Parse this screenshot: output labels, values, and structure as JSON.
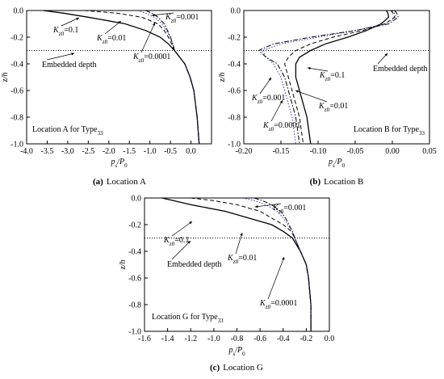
{
  "chart_data": [
    {
      "type": "line",
      "ylabel": "z/h",
      "xlabel": [
        "p",
        "s",
        "/P",
        "0"
      ],
      "xlim": [
        -4,
        0.5
      ],
      "ylim": [
        -1,
        0
      ],
      "xticks": [
        {
          "value": -4,
          "label": "-4.0"
        },
        {
          "value": -3.5,
          "label": "-3.5"
        },
        {
          "value": -3,
          "label": "-3.0"
        },
        {
          "value": -2.5,
          "label": "-2.5"
        },
        {
          "value": -2,
          "label": "-2.0"
        },
        {
          "value": -1.5,
          "label": "-1.5"
        },
        {
          "value": -1,
          "label": "-1.0"
        },
        {
          "value": -0.5,
          "label": "-0.5"
        },
        {
          "value": 0,
          "label": "0.0"
        }
      ],
      "yticks": [
        {
          "value": 0,
          "label": "0.0"
        },
        -0.2,
        -0.4,
        -0.6,
        -0.8,
        {
          "value": -1,
          "label": "-1.0"
        }
      ],
      "embedded_depth": -0.3,
      "depth_label": "Embedded depth",
      "location": [
        "Location A for Type",
        "33"
      ],
      "caption": [
        "(a)",
        "Location A"
      ],
      "series": [
        {
          "name": [
            "K",
            "z0",
            "=0.1"
          ],
          "color": "#000000",
          "style": "solid",
          "x": [
            -3.6,
            -3.1,
            -2.5,
            -1.6,
            -1.1,
            -0.75,
            -0.55,
            -0.4,
            -0.15,
            -0.02,
            0.07,
            0.15,
            0.2
          ],
          "values": [
            0,
            -0.02,
            -0.05,
            -0.1,
            -0.15,
            -0.2,
            -0.25,
            -0.3,
            -0.4,
            -0.5,
            -0.6,
            -0.8,
            -1
          ]
        },
        {
          "name": [
            "K",
            "z0",
            "=0.01"
          ],
          "color": "#000000",
          "style": "dashed",
          "x": [
            -2.6,
            -1.8,
            -1.2,
            -0.8,
            -0.65,
            -0.55,
            -0.47,
            -0.4,
            -0.15,
            -0.02,
            0.07,
            0.15,
            0.2
          ],
          "values": [
            0,
            -0.02,
            -0.05,
            -0.1,
            -0.15,
            -0.2,
            -0.25,
            -0.3,
            -0.4,
            -0.5,
            -0.6,
            -0.8,
            -1
          ]
        },
        {
          "name": [
            "K",
            "z0",
            "=0.001"
          ],
          "color": "#3333cc",
          "style": "dotted",
          "x": [
            -1.3,
            -1.1,
            -0.9,
            -0.7,
            -0.6,
            -0.5,
            -0.45,
            -0.4,
            -0.15,
            -0.02,
            0.07,
            0.15,
            0.2
          ],
          "values": [
            0,
            -0.02,
            -0.05,
            -0.1,
            -0.15,
            -0.2,
            -0.25,
            -0.3,
            -0.4,
            -0.5,
            -0.6,
            -0.8,
            -1
          ]
        },
        {
          "name": [
            "K",
            "z0",
            "=0.0001"
          ],
          "color": "#000000",
          "style": "dashdot",
          "x": [
            -1.1,
            -0.95,
            -0.8,
            -0.65,
            -0.57,
            -0.5,
            -0.44,
            -0.4,
            -0.15,
            -0.02,
            0.07,
            0.15,
            0.2
          ],
          "values": [
            0,
            -0.02,
            -0.05,
            -0.1,
            -0.15,
            -0.2,
            -0.25,
            -0.3,
            -0.4,
            -0.5,
            -0.6,
            -0.8,
            -1
          ]
        }
      ]
    },
    {
      "type": "line",
      "ylabel": "z/h",
      "xlabel": [
        "p",
        "s",
        "/P",
        "0"
      ],
      "xlim": [
        -0.2,
        0.05
      ],
      "ylim": [
        -1,
        0
      ],
      "xticks": [
        {
          "value": -0.2,
          "label": "-0.20"
        },
        -0.15,
        {
          "value": -0.1,
          "label": "-0.10"
        },
        -0.05,
        {
          "value": 0,
          "label": "0.00"
        },
        0.05
      ],
      "yticks": [
        {
          "value": 0,
          "label": "0.0"
        },
        -0.2,
        -0.4,
        -0.6,
        -0.8,
        {
          "value": -1,
          "label": "-1.0"
        }
      ],
      "embedded_depth": -0.3,
      "depth_label": "Embedded depth",
      "location": [
        "Location B for Type",
        "33"
      ],
      "caption": [
        "(b)",
        "Location B"
      ],
      "series": [
        {
          "name": [
            "K",
            "z0",
            "=0.1"
          ],
          "color": "#000000",
          "style": "solid",
          "x": [
            -0.008,
            -0.006,
            -0.005,
            -0.015,
            -0.035,
            -0.06,
            -0.09,
            -0.11,
            -0.125,
            -0.13,
            -0.13,
            -0.125,
            -0.115,
            -0.11
          ],
          "values": [
            0,
            -0.02,
            -0.05,
            -0.1,
            -0.15,
            -0.2,
            -0.25,
            -0.3,
            -0.35,
            -0.4,
            -0.5,
            -0.6,
            -0.8,
            -1
          ]
        },
        {
          "name": [
            "K",
            "z0",
            "=0.01"
          ],
          "color": "#000000",
          "style": "dashed",
          "x": [
            -0.002,
            0.001,
            0.003,
            -0.01,
            -0.04,
            -0.08,
            -0.11,
            -0.13,
            -0.14,
            -0.145,
            -0.14,
            -0.135,
            -0.125,
            -0.12
          ],
          "values": [
            0,
            -0.02,
            -0.05,
            -0.1,
            -0.15,
            -0.2,
            -0.25,
            -0.3,
            -0.35,
            -0.4,
            -0.5,
            -0.6,
            -0.8,
            -1
          ]
        },
        {
          "name": [
            "K",
            "z0",
            "=0.001"
          ],
          "color": "#3333cc",
          "style": "dotted",
          "x": [
            0,
            0.003,
            0.005,
            -0.01,
            -0.05,
            -0.1,
            -0.15,
            -0.175,
            -0.17,
            -0.16,
            -0.15,
            -0.145,
            -0.135,
            -0.13
          ],
          "values": [
            0,
            -0.02,
            -0.05,
            -0.1,
            -0.15,
            -0.2,
            -0.25,
            -0.3,
            -0.35,
            -0.4,
            -0.5,
            -0.6,
            -0.8,
            -1
          ]
        },
        {
          "name": [
            "K",
            "z0",
            "=0.0001"
          ],
          "color": "#000000",
          "style": "dashdot",
          "x": [
            0.003,
            0.006,
            0.008,
            -0.005,
            -0.05,
            -0.11,
            -0.16,
            -0.18,
            -0.17,
            -0.155,
            -0.145,
            -0.14,
            -0.13,
            -0.125
          ],
          "values": [
            0,
            -0.02,
            -0.05,
            -0.1,
            -0.15,
            -0.2,
            -0.25,
            -0.3,
            -0.35,
            -0.4,
            -0.5,
            -0.6,
            -0.8,
            -1
          ]
        }
      ]
    },
    {
      "type": "line",
      "ylabel": "z/h",
      "xlabel": [
        "p",
        "s",
        "/P",
        "0"
      ],
      "xlim": [
        -1.6,
        0
      ],
      "ylim": [
        -1,
        0
      ],
      "xticks": [
        -1.6,
        -1.4,
        -1.2,
        {
          "value": -1,
          "label": "-1.0"
        },
        -0.8,
        -0.6,
        -0.4,
        -0.2,
        {
          "value": 0,
          "label": "0.0"
        }
      ],
      "yticks": [
        {
          "value": 0,
          "label": "0.0"
        },
        -0.2,
        -0.4,
        -0.6,
        -0.8,
        {
          "value": -1,
          "label": "-1.0"
        }
      ],
      "embedded_depth": -0.3,
      "depth_label": "Embedded depth",
      "location": [
        "Location G for Type",
        "33"
      ],
      "caption": [
        "(c)",
        "Location G"
      ],
      "series": [
        {
          "name": [
            "K",
            "z0",
            "=0.1"
          ],
          "color": "#000000",
          "style": "solid",
          "x": [
            -1.45,
            -1.35,
            -1.2,
            -0.9,
            -0.7,
            -0.5,
            -0.4,
            -0.32,
            -0.25,
            -0.2,
            -0.18,
            -0.16,
            -0.16
          ],
          "values": [
            0,
            -0.02,
            -0.05,
            -0.1,
            -0.15,
            -0.2,
            -0.25,
            -0.3,
            -0.4,
            -0.5,
            -0.6,
            -0.8,
            -1
          ]
        },
        {
          "name": [
            "K",
            "z0",
            "=0.01"
          ],
          "color": "#000000",
          "style": "dashed",
          "x": [
            -1.2,
            -1,
            -0.8,
            -0.6,
            -0.5,
            -0.4,
            -0.33,
            -0.3,
            -0.25,
            -0.2,
            -0.18,
            -0.16,
            -0.16
          ],
          "values": [
            0,
            -0.02,
            -0.05,
            -0.1,
            -0.15,
            -0.2,
            -0.25,
            -0.3,
            -0.4,
            -0.5,
            -0.6,
            -0.8,
            -1
          ]
        },
        {
          "name": [
            "K",
            "z0",
            "=0.001"
          ],
          "color": "#3333cc",
          "style": "dotted",
          "x": [
            -0.75,
            -0.65,
            -0.55,
            -0.45,
            -0.4,
            -0.36,
            -0.32,
            -0.3,
            -0.25,
            -0.2,
            -0.18,
            -0.16,
            -0.16
          ],
          "values": [
            0,
            -0.02,
            -0.05,
            -0.1,
            -0.15,
            -0.2,
            -0.25,
            -0.3,
            -0.4,
            -0.5,
            -0.6,
            -0.8,
            -1
          ]
        },
        {
          "name": [
            "K",
            "z0",
            "=0.0001"
          ],
          "color": "#000000",
          "style": "dashdot",
          "x": [
            -0.65,
            -0.58,
            -0.5,
            -0.42,
            -0.38,
            -0.35,
            -0.32,
            -0.3,
            -0.25,
            -0.2,
            -0.18,
            -0.16,
            -0.16
          ],
          "values": [
            0,
            -0.02,
            -0.05,
            -0.1,
            -0.15,
            -0.2,
            -0.25,
            -0.3,
            -0.4,
            -0.5,
            -0.6,
            -0.8,
            -1
          ]
        }
      ]
    }
  ]
}
